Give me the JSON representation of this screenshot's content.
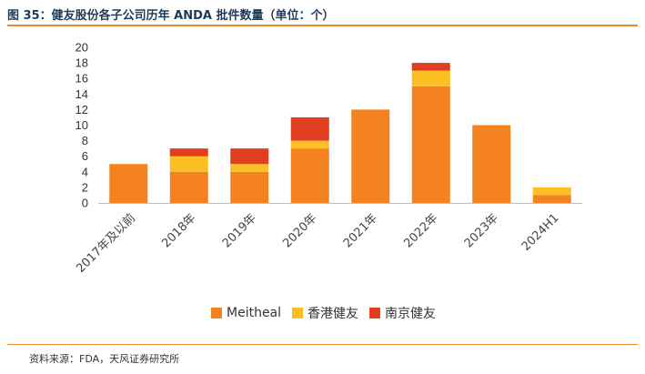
{
  "title": "图 35：健友股份各子公司历年 ANDA 批件数量（单位：个）",
  "source": "资料来源：FDA，天风证券研究所",
  "chart_data": {
    "type": "bar",
    "stacked": true,
    "categories": [
      "2017年及以前",
      "2018年",
      "2019年",
      "2020年",
      "2021年",
      "2022年",
      "2023年",
      "2024H1"
    ],
    "series": [
      {
        "name": "Meitheal",
        "color": "#f58220",
        "values": [
          5,
          4,
          4,
          7,
          12,
          15,
          10,
          1
        ]
      },
      {
        "name": "香港健友",
        "color": "#fbbf24",
        "values": [
          0,
          2,
          1,
          1,
          0,
          2,
          0,
          1
        ]
      },
      {
        "name": "南京健友",
        "color": "#e03e1f",
        "values": [
          0,
          1,
          2,
          3,
          0,
          1,
          0,
          0
        ]
      }
    ],
    "ylim": [
      0,
      20
    ],
    "yticks": [
      0,
      2,
      4,
      6,
      8,
      10,
      12,
      14,
      16,
      18,
      20
    ],
    "legend_position": "bottom",
    "grid": false
  }
}
